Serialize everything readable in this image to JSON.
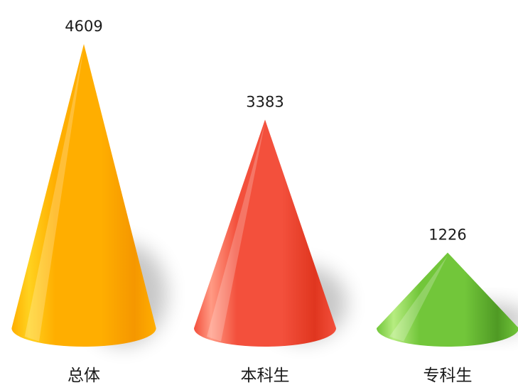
{
  "chart_data": {
    "type": "bar",
    "style": "3d-cone",
    "categories": [
      "总体",
      "本科生",
      "专科生"
    ],
    "values": [
      4609,
      3383,
      1226
    ],
    "show_value_labels": true,
    "grid": false,
    "legend": "none",
    "colors": [
      {
        "light": "#ffd21f",
        "base": "#ffae00",
        "dark": "#f59700"
      },
      {
        "light": "#ff9a84",
        "base": "#f3503c",
        "dark": "#e0361f"
      },
      {
        "light": "#b6ec80",
        "base": "#72c63a",
        "dark": "#4f9a24"
      }
    ]
  }
}
